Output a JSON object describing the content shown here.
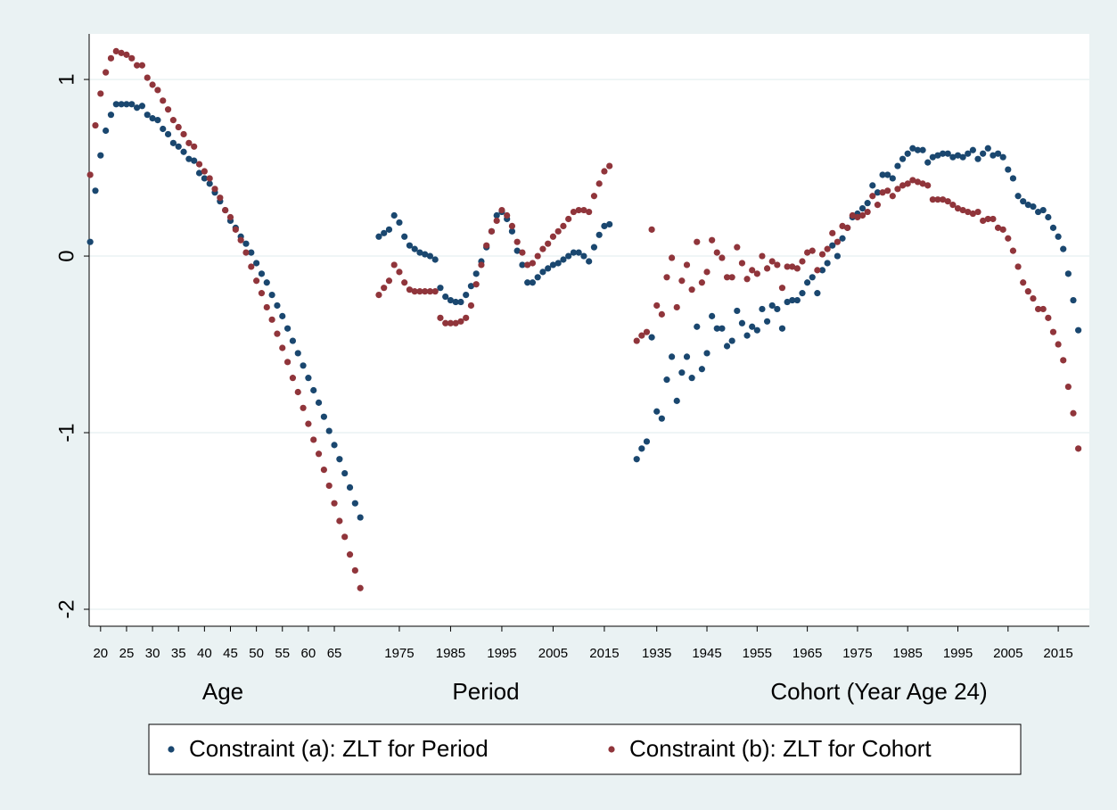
{
  "chart_data": [
    {
      "type": "scatter",
      "xlabel": "Age",
      "xlim": [
        17.8,
        71
      ],
      "xticks": [
        20,
        25,
        30,
        35,
        40,
        45,
        50,
        55,
        60,
        65
      ],
      "ylim": [
        -2.096,
        1.258
      ],
      "yticks": [
        -2,
        -1,
        0,
        1
      ],
      "grid": true,
      "legend": "bottom",
      "x": [
        18,
        19,
        20,
        21,
        22,
        23,
        24,
        25,
        26,
        27,
        28,
        29,
        30,
        31,
        32,
        33,
        34,
        35,
        36,
        37,
        38,
        39,
        40,
        41,
        42,
        43,
        44,
        45,
        46,
        47,
        48,
        49,
        50,
        51,
        52,
        53,
        54,
        55,
        56,
        57,
        58,
        59,
        60,
        61,
        62,
        63,
        64,
        65,
        66,
        67,
        68,
        69,
        70
      ],
      "series": [
        {
          "name": "Constraint (a): ZLT for Period",
          "color": "#1a476f",
          "values": [
            0.08,
            0.37,
            0.57,
            0.71,
            0.8,
            0.86,
            0.86,
            0.86,
            0.86,
            0.84,
            0.85,
            0.8,
            0.78,
            0.77,
            0.72,
            0.69,
            0.64,
            0.62,
            0.59,
            0.55,
            0.54,
            0.47,
            0.44,
            0.41,
            0.36,
            0.31,
            0.26,
            0.2,
            0.16,
            0.11,
            0.07,
            0.02,
            -0.04,
            -0.1,
            -0.15,
            -0.22,
            -0.28,
            -0.34,
            -0.41,
            -0.48,
            -0.55,
            -0.62,
            -0.69,
            -0.76,
            -0.83,
            -0.91,
            -0.99,
            -1.07,
            -1.15,
            -1.23,
            -1.31,
            -1.4,
            -1.48
          ]
        },
        {
          "name": "Constraint (b): ZLT for Cohort",
          "color": "#90353b",
          "values": [
            0.46,
            0.74,
            0.92,
            1.04,
            1.12,
            1.16,
            1.15,
            1.14,
            1.12,
            1.08,
            1.08,
            1.01,
            0.97,
            0.94,
            0.88,
            0.83,
            0.77,
            0.73,
            0.69,
            0.64,
            0.62,
            0.52,
            0.48,
            0.44,
            0.38,
            0.33,
            0.26,
            0.22,
            0.15,
            0.09,
            0.02,
            -0.06,
            -0.14,
            -0.21,
            -0.29,
            -0.36,
            -0.44,
            -0.52,
            -0.6,
            -0.69,
            -0.77,
            -0.86,
            -0.95,
            -1.04,
            -1.12,
            -1.21,
            -1.3,
            -1.4,
            -1.5,
            -1.59,
            -1.69,
            -1.78,
            -1.88
          ]
        }
      ]
    },
    {
      "type": "scatter",
      "xlabel": "Period",
      "xlim": [
        1968.4,
        2017.1
      ],
      "xticks": [
        1975,
        1985,
        1995,
        2005,
        2015
      ],
      "x": [
        1971,
        1972,
        1973,
        1974,
        1975,
        1976,
        1977,
        1978,
        1979,
        1980,
        1981,
        1982,
        1983,
        1984,
        1985,
        1986,
        1987,
        1988,
        1989,
        1990,
        1991,
        1992,
        1993,
        1994,
        1995,
        1996,
        1997,
        1998,
        1999,
        2000,
        2001,
        2002,
        2003,
        2004,
        2005,
        2006,
        2007,
        2008,
        2009,
        2010,
        2011,
        2012,
        2013,
        2014,
        2015,
        2016
      ],
      "series": [
        {
          "color": "#1a476f",
          "values": [
            0.11,
            0.13,
            0.15,
            0.23,
            0.19,
            0.11,
            0.06,
            0.04,
            0.02,
            0.01,
            0.0,
            -0.02,
            -0.18,
            -0.23,
            -0.25,
            -0.26,
            -0.26,
            -0.22,
            -0.17,
            -0.1,
            -0.03,
            0.05,
            0.14,
            0.23,
            0.25,
            0.21,
            0.14,
            0.03,
            -0.05,
            -0.15,
            -0.15,
            -0.12,
            -0.09,
            -0.07,
            -0.05,
            -0.04,
            -0.02,
            0.0,
            0.02,
            0.02,
            0.0,
            -0.03,
            0.05,
            0.12,
            0.17,
            0.18
          ]
        },
        {
          "color": "#90353b",
          "values": [
            -0.22,
            -0.18,
            -0.14,
            -0.05,
            -0.09,
            -0.15,
            -0.19,
            -0.2,
            -0.2,
            -0.2,
            -0.2,
            -0.2,
            -0.35,
            -0.38,
            -0.38,
            -0.38,
            -0.37,
            -0.35,
            -0.28,
            -0.16,
            -0.05,
            0.06,
            0.14,
            0.2,
            0.26,
            0.23,
            0.17,
            0.08,
            0.02,
            -0.05,
            -0.04,
            0.0,
            0.04,
            0.07,
            0.11,
            0.14,
            0.17,
            0.21,
            0.25,
            0.26,
            0.26,
            0.25,
            0.34,
            0.41,
            0.48,
            0.51
          ]
        }
      ]
    },
    {
      "type": "scatter",
      "xlabel": "Cohort (Year Age 24)",
      "xlim": [
        1926.7,
        2021.2
      ],
      "xticks": [
        1935,
        1945,
        1955,
        1965,
        1975,
        1985,
        1995,
        2005,
        2015
      ],
      "x": [
        1931,
        1932,
        1933,
        1934,
        1935,
        1936,
        1937,
        1938,
        1939,
        1940,
        1941,
        1942,
        1943,
        1944,
        1945,
        1946,
        1947,
        1948,
        1949,
        1950,
        1951,
        1952,
        1953,
        1954,
        1955,
        1956,
        1957,
        1958,
        1959,
        1960,
        1961,
        1962,
        1963,
        1964,
        1965,
        1966,
        1967,
        1968,
        1969,
        1970,
        1971,
        1972,
        1973,
        1974,
        1975,
        1976,
        1977,
        1978,
        1979,
        1980,
        1981,
        1982,
        1983,
        1984,
        1985,
        1986,
        1987,
        1988,
        1989,
        1990,
        1991,
        1992,
        1993,
        1994,
        1995,
        1996,
        1997,
        1998,
        1999,
        2000,
        2001,
        2002,
        2003,
        2004,
        2005,
        2006,
        2007,
        2008,
        2009,
        2010,
        2011,
        2012,
        2013,
        2014,
        2015,
        2016,
        2017,
        2018,
        2019
      ],
      "series": [
        {
          "color": "#1a476f",
          "values": [
            -1.15,
            -1.09,
            -1.05,
            -0.46,
            -0.88,
            -0.92,
            -0.7,
            -0.57,
            -0.82,
            -0.66,
            -0.57,
            -0.69,
            -0.4,
            -0.64,
            -0.55,
            -0.34,
            -0.41,
            -0.41,
            -0.51,
            -0.48,
            -0.31,
            -0.38,
            -0.45,
            -0.4,
            -0.42,
            -0.3,
            -0.37,
            -0.28,
            -0.3,
            -0.41,
            -0.26,
            -0.25,
            -0.25,
            -0.21,
            -0.15,
            -0.12,
            -0.21,
            -0.08,
            -0.04,
            0.06,
            0.0,
            0.1,
            0.16,
            0.22,
            0.24,
            0.27,
            0.3,
            0.4,
            0.36,
            0.46,
            0.46,
            0.44,
            0.51,
            0.55,
            0.58,
            0.61,
            0.6,
            0.6,
            0.53,
            0.56,
            0.57,
            0.58,
            0.58,
            0.56,
            0.57,
            0.56,
            0.58,
            0.6,
            0.55,
            0.58,
            0.61,
            0.57,
            0.58,
            0.56,
            0.49,
            0.44,
            0.34,
            0.31,
            0.29,
            0.28,
            0.25,
            0.26,
            0.22,
            0.16,
            0.11,
            0.04,
            -0.1,
            -0.25,
            -0.42
          ]
        },
        {
          "color": "#90353b",
          "values": [
            -0.48,
            -0.45,
            -0.43,
            0.15,
            -0.28,
            -0.33,
            -0.12,
            -0.01,
            -0.29,
            -0.14,
            -0.05,
            -0.19,
            0.08,
            -0.15,
            -0.09,
            0.09,
            0.02,
            -0.01,
            -0.12,
            -0.12,
            0.05,
            -0.04,
            -0.13,
            -0.08,
            -0.1,
            0.0,
            -0.07,
            -0.03,
            -0.05,
            -0.18,
            -0.06,
            -0.06,
            -0.07,
            -0.03,
            0.02,
            0.03,
            -0.08,
            0.01,
            0.04,
            0.13,
            0.08,
            0.17,
            0.16,
            0.23,
            0.22,
            0.23,
            0.25,
            0.34,
            0.29,
            0.36,
            0.37,
            0.34,
            0.38,
            0.4,
            0.41,
            0.43,
            0.42,
            0.41,
            0.4,
            0.32,
            0.32,
            0.32,
            0.31,
            0.29,
            0.27,
            0.26,
            0.25,
            0.24,
            0.25,
            0.2,
            0.21,
            0.21,
            0.16,
            0.15,
            0.1,
            0.03,
            -0.06,
            -0.15,
            -0.2,
            -0.24,
            -0.3,
            -0.3,
            -0.35,
            -0.43,
            -0.5,
            -0.59,
            -0.74,
            -0.89,
            -1.09
          ]
        }
      ]
    }
  ]
}
